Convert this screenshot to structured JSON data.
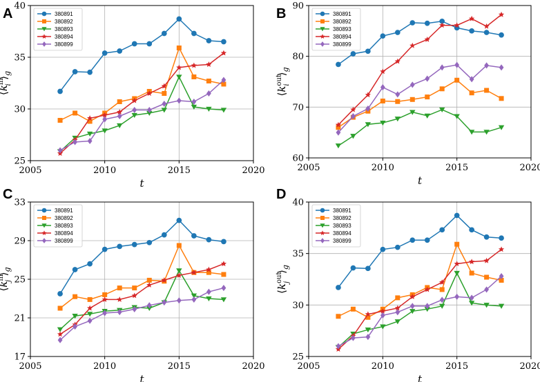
{
  "colors": {
    "380891": "#1f77b4",
    "380892": "#ff7f0e",
    "380893": "#2ca02c",
    "380894": "#d62728",
    "380899": "#9467bd",
    "grid": "#b0b0b0"
  },
  "chart_data": [
    {
      "panel": "A",
      "type": "line",
      "xlabel": "t",
      "ylabel": "⟨k_i^in⟩_g",
      "ylabel_main": "k",
      "ylabel_sub": "i",
      "ylabel_sup": "in",
      "xlim": [
        2005,
        2020
      ],
      "ylim": [
        25,
        40
      ],
      "xticks": [
        2005,
        2010,
        2015,
        2020
      ],
      "yticks": [
        25,
        30,
        35,
        40
      ],
      "grid": true,
      "legend": "top-left",
      "x": [
        2007,
        2008,
        2009,
        2010,
        2011,
        2012,
        2013,
        2014,
        2015,
        2016,
        2017,
        2018
      ],
      "series": [
        {
          "name": "380891",
          "marker": "circle",
          "values": [
            31.7,
            33.6,
            33.55,
            35.4,
            35.6,
            36.3,
            36.3,
            37.3,
            38.7,
            37.3,
            36.6,
            36.5
          ]
        },
        {
          "name": "380892",
          "marker": "square",
          "values": [
            28.9,
            29.6,
            28.8,
            29.6,
            30.7,
            31.0,
            31.7,
            31.5,
            35.9,
            33.1,
            32.7,
            32.4
          ]
        },
        {
          "name": "380893",
          "marker": "triangle-down",
          "values": [
            25.9,
            27.2,
            27.6,
            27.9,
            28.4,
            29.4,
            29.6,
            29.9,
            33.1,
            30.2,
            30.0,
            29.9
          ]
        },
        {
          "name": "380894",
          "marker": "star",
          "values": [
            25.7,
            27.0,
            29.1,
            29.4,
            29.7,
            30.8,
            31.5,
            32.2,
            34.0,
            34.2,
            34.3,
            35.4
          ]
        },
        {
          "name": "380899",
          "marker": "diamond",
          "values": [
            26.0,
            26.8,
            26.9,
            29.0,
            29.3,
            29.9,
            29.9,
            30.5,
            30.8,
            30.7,
            31.5,
            32.8
          ]
        }
      ]
    },
    {
      "panel": "B",
      "type": "line",
      "xlabel": "t",
      "ylabel": "⟨k_i^out⟩_g",
      "ylabel_main": "k",
      "ylabel_sub": "i",
      "ylabel_sup": "out",
      "xlim": [
        2005,
        2020
      ],
      "ylim": [
        60,
        90
      ],
      "xticks": [
        2005,
        2010,
        2015,
        2020
      ],
      "yticks": [
        60,
        70,
        80,
        90
      ],
      "grid": true,
      "legend": "top-left",
      "x": [
        2007,
        2008,
        2009,
        2010,
        2011,
        2012,
        2013,
        2014,
        2015,
        2016,
        2017,
        2018
      ],
      "series": [
        {
          "name": "380891",
          "marker": "circle",
          "values": [
            78.4,
            80.5,
            81.0,
            84.0,
            84.7,
            86.6,
            86.5,
            86.9,
            85.6,
            85.0,
            84.7,
            84.2
          ]
        },
        {
          "name": "380892",
          "marker": "square",
          "values": [
            66.0,
            68.0,
            69.2,
            71.2,
            71.1,
            71.5,
            72.0,
            73.6,
            75.3,
            72.8,
            73.3,
            71.7
          ]
        },
        {
          "name": "380893",
          "marker": "triangle-down",
          "values": [
            62.4,
            64.3,
            66.6,
            66.9,
            67.7,
            69.0,
            68.3,
            69.5,
            68.2,
            65.1,
            65.1,
            66.0
          ]
        },
        {
          "name": "380894",
          "marker": "star",
          "values": [
            66.5,
            69.5,
            72.4,
            77.0,
            79.0,
            82.1,
            83.3,
            86.1,
            86.1,
            87.4,
            85.9,
            88.2
          ]
        },
        {
          "name": "380899",
          "marker": "diamond",
          "values": [
            65.0,
            68.2,
            69.7,
            73.9,
            72.5,
            74.4,
            75.6,
            77.8,
            78.3,
            75.5,
            78.2,
            77.8
          ]
        }
      ]
    },
    {
      "panel": "C",
      "type": "line",
      "xlabel": "t",
      "ylabel": "⟨k_j^in⟩_g",
      "ylabel_main": "k",
      "ylabel_sub": "j",
      "ylabel_sup": "in",
      "xlim": [
        2005,
        2020
      ],
      "ylim": [
        17,
        33
      ],
      "xticks": [
        2005,
        2010,
        2015,
        2020
      ],
      "yticks": [
        17,
        21,
        25,
        29,
        33
      ],
      "grid": true,
      "legend": "top-left",
      "x": [
        2007,
        2008,
        2009,
        2010,
        2011,
        2012,
        2013,
        2014,
        2015,
        2016,
        2017,
        2018
      ],
      "series": [
        {
          "name": "380891",
          "marker": "circle",
          "values": [
            23.5,
            26.0,
            26.6,
            28.1,
            28.4,
            28.6,
            28.8,
            29.6,
            31.1,
            29.5,
            29.1,
            28.9
          ]
        },
        {
          "name": "380892",
          "marker": "square",
          "values": [
            22.0,
            23.2,
            22.9,
            23.4,
            24.1,
            24.1,
            24.9,
            24.8,
            28.5,
            25.7,
            25.7,
            25.5
          ]
        },
        {
          "name": "380893",
          "marker": "triangle-down",
          "values": [
            19.8,
            21.2,
            21.4,
            21.7,
            21.8,
            22.1,
            22.0,
            22.6,
            25.9,
            23.3,
            23.0,
            22.9
          ]
        },
        {
          "name": "380894",
          "marker": "star",
          "values": [
            19.3,
            20.3,
            22.0,
            22.9,
            22.9,
            23.3,
            24.4,
            24.9,
            25.4,
            25.7,
            26.0,
            26.6
          ]
        },
        {
          "name": "380899",
          "marker": "diamond",
          "values": [
            18.7,
            20.1,
            20.7,
            21.5,
            21.6,
            21.9,
            22.3,
            22.6,
            22.8,
            22.9,
            23.7,
            24.1
          ]
        }
      ]
    },
    {
      "panel": "D",
      "type": "line",
      "xlabel": "t",
      "ylabel": "⟨k_j^out⟩_g",
      "ylabel_main": "k",
      "ylabel_sub": "j",
      "ylabel_sup": "out",
      "xlim": [
        2005,
        2020
      ],
      "ylim": [
        25,
        40
      ],
      "xticks": [
        2005,
        2010,
        2015,
        2020
      ],
      "yticks": [
        25,
        30,
        35,
        40
      ],
      "grid": true,
      "legend": "top-left",
      "x": [
        2007,
        2008,
        2009,
        2010,
        2011,
        2012,
        2013,
        2014,
        2015,
        2016,
        2017,
        2018
      ],
      "series": [
        {
          "name": "380891",
          "marker": "circle",
          "values": [
            31.7,
            33.6,
            33.55,
            35.4,
            35.6,
            36.3,
            36.3,
            37.3,
            38.7,
            37.3,
            36.6,
            36.5
          ]
        },
        {
          "name": "380892",
          "marker": "square",
          "values": [
            28.9,
            29.6,
            28.8,
            29.6,
            30.7,
            31.0,
            31.7,
            31.5,
            35.9,
            33.1,
            32.7,
            32.4
          ]
        },
        {
          "name": "380893",
          "marker": "triangle-down",
          "values": [
            25.9,
            27.2,
            27.6,
            27.9,
            28.4,
            29.4,
            29.6,
            29.9,
            33.1,
            30.2,
            30.0,
            29.9
          ]
        },
        {
          "name": "380894",
          "marker": "star",
          "values": [
            25.7,
            27.0,
            29.1,
            29.4,
            29.7,
            30.8,
            31.5,
            32.2,
            34.0,
            34.2,
            34.3,
            35.4
          ]
        },
        {
          "name": "380899",
          "marker": "diamond",
          "values": [
            26.0,
            26.8,
            26.9,
            29.0,
            29.3,
            29.9,
            29.9,
            30.5,
            30.8,
            30.7,
            31.5,
            32.8
          ]
        }
      ]
    }
  ]
}
